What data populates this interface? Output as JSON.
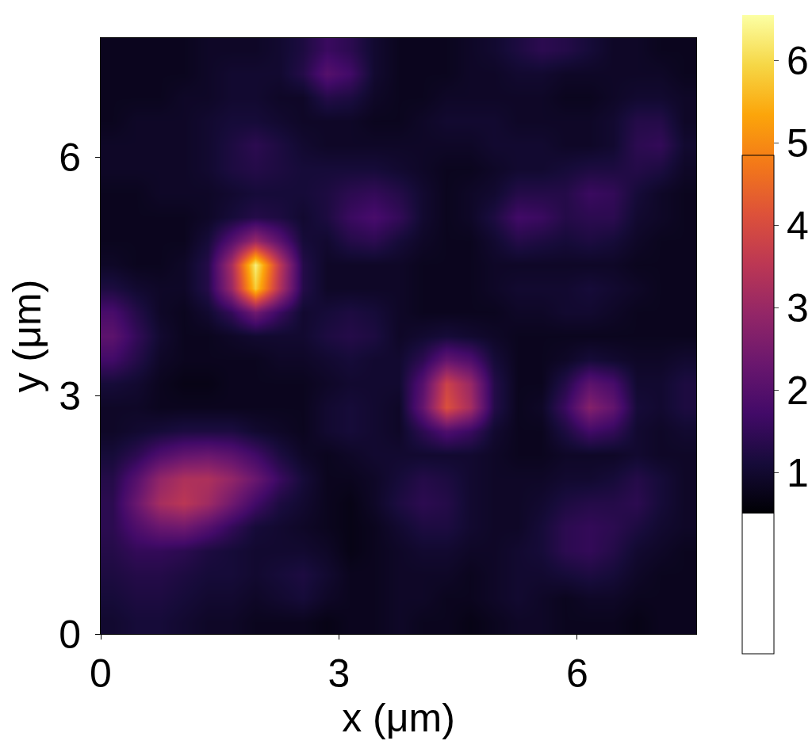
{
  "chart_data": {
    "type": "heatmap",
    "xlabel": "x (μm)",
    "ylabel": "y (μm)",
    "color": "inferno",
    "xlim": [
      0,
      7.5
    ],
    "ylim": [
      0,
      7.5
    ],
    "xticks": [
      0,
      3,
      6
    ],
    "yticks": [
      0,
      3,
      6
    ],
    "colorbar_range": [
      0.5,
      6.55
    ],
    "colorbar_ticks": [
      1,
      2,
      3,
      4,
      5,
      6
    ],
    "x": [
      0.15,
      0.45,
      0.75,
      1.05,
      1.35,
      1.65,
      1.95,
      2.25,
      2.55,
      2.85,
      3.15,
      3.45,
      3.75,
      4.05,
      4.35,
      4.65,
      4.95,
      5.25,
      5.55,
      5.85,
      6.15,
      6.45,
      6.75,
      7.05,
      7.35
    ],
    "y": [
      0.15,
      0.45,
      0.75,
      1.05,
      1.35,
      1.65,
      1.95,
      2.25,
      2.55,
      2.85,
      3.15,
      3.45,
      3.75,
      4.05,
      4.35,
      4.65,
      4.95,
      5.25,
      5.55,
      5.85,
      6.15,
      6.45,
      6.75,
      7.05,
      7.35
    ],
    "z": [
      [
        1.0,
        1.1,
        1.1,
        1.0,
        0.9,
        0.9,
        0.8,
        0.8,
        0.8,
        0.7,
        0.8,
        0.8,
        0.9,
        0.8,
        0.8,
        0.7,
        0.8,
        0.9,
        0.9,
        0.8,
        0.8,
        0.8,
        0.7,
        0.8,
        0.8
      ],
      [
        1.1,
        1.2,
        1.2,
        1.1,
        1.0,
        1.0,
        0.9,
        1.0,
        1.1,
        0.9,
        0.8,
        0.8,
        0.9,
        0.9,
        0.8,
        0.8,
        0.9,
        1.0,
        0.9,
        0.8,
        0.9,
        0.9,
        0.8,
        0.8,
        0.8
      ],
      [
        1.2,
        1.3,
        1.3,
        1.2,
        1.1,
        1.1,
        1.0,
        1.1,
        1.2,
        1.0,
        0.8,
        0.8,
        0.9,
        0.9,
        0.9,
        0.8,
        0.9,
        1.0,
        1.0,
        1.1,
        1.2,
        1.1,
        0.9,
        0.8,
        0.8
      ],
      [
        1.3,
        1.5,
        1.5,
        1.4,
        1.2,
        1.1,
        1.0,
        1.0,
        1.0,
        0.9,
        0.7,
        0.8,
        0.9,
        1.0,
        1.0,
        0.9,
        0.9,
        1.0,
        1.1,
        1.4,
        1.5,
        1.3,
        1.0,
        0.9,
        0.8
      ],
      [
        1.4,
        1.9,
        2.3,
        2.4,
        2.0,
        1.5,
        1.1,
        1.0,
        0.9,
        0.8,
        0.7,
        0.8,
        1.0,
        1.2,
        1.2,
        1.0,
        0.9,
        0.9,
        1.1,
        1.4,
        1.5,
        1.4,
        1.2,
        1.0,
        0.9
      ],
      [
        1.4,
        2.3,
        3.2,
        3.5,
        3.1,
        2.4,
        1.7,
        1.2,
        1.0,
        0.8,
        0.7,
        0.9,
        1.2,
        1.4,
        1.3,
        1.0,
        0.9,
        0.9,
        1.0,
        1.2,
        1.3,
        1.3,
        1.4,
        1.1,
        0.9
      ],
      [
        1.3,
        2.0,
        2.9,
        3.3,
        3.3,
        2.9,
        2.3,
        1.6,
        1.1,
        0.8,
        0.8,
        0.9,
        1.1,
        1.3,
        1.2,
        1.0,
        0.9,
        0.9,
        0.9,
        1.0,
        1.0,
        1.1,
        1.3,
        1.1,
        0.9
      ],
      [
        1.1,
        1.4,
        1.9,
        2.2,
        2.3,
        2.1,
        1.7,
        1.2,
        0.9,
        0.8,
        0.9,
        1.0,
        1.0,
        1.0,
        1.0,
        1.0,
        0.9,
        0.8,
        0.8,
        0.9,
        0.9,
        0.9,
        1.0,
        0.9,
        0.9
      ],
      [
        0.9,
        1.0,
        1.1,
        1.2,
        1.2,
        1.2,
        1.0,
        0.9,
        0.8,
        1.0,
        1.1,
        1.0,
        0.9,
        1.4,
        1.9,
        1.6,
        1.0,
        0.8,
        0.8,
        1.2,
        1.7,
        1.5,
        1.0,
        0.9,
        1.0
      ],
      [
        0.9,
        0.9,
        0.8,
        0.8,
        0.8,
        0.8,
        0.8,
        0.8,
        0.8,
        1.0,
        1.1,
        1.0,
        0.9,
        2.2,
        4.1,
        3.2,
        1.3,
        0.8,
        0.9,
        1.6,
        2.7,
        2.2,
        1.1,
        1.0,
        1.2
      ],
      [
        1.1,
        1.0,
        0.8,
        0.7,
        0.7,
        0.8,
        0.8,
        0.8,
        0.8,
        0.9,
        1.0,
        1.0,
        1.0,
        2.0,
        3.8,
        3.0,
        1.3,
        0.8,
        0.8,
        1.3,
        2.1,
        1.8,
        1.0,
        1.0,
        1.2
      ],
      [
        1.7,
        1.3,
        0.9,
        0.8,
        0.8,
        0.8,
        0.8,
        0.9,
        0.9,
        1.0,
        1.1,
        1.0,
        1.0,
        1.4,
        2.2,
        1.9,
        1.1,
        0.8,
        0.8,
        0.9,
        1.1,
        1.0,
        0.9,
        0.9,
        1.0
      ],
      [
        2.1,
        1.5,
        1.0,
        0.8,
        0.8,
        0.9,
        1.0,
        1.0,
        1.0,
        1.2,
        1.3,
        1.2,
        0.9,
        1.0,
        1.1,
        1.0,
        0.9,
        0.8,
        0.8,
        0.8,
        0.8,
        0.8,
        0.8,
        0.8,
        0.8
      ],
      [
        1.8,
        1.3,
        0.9,
        0.8,
        1.0,
        1.5,
        2.4,
        1.6,
        1.0,
        1.1,
        1.2,
        1.1,
        0.9,
        0.8,
        0.8,
        0.8,
        0.8,
        0.9,
        0.9,
        1.0,
        1.0,
        0.9,
        0.8,
        0.8,
        0.8
      ],
      [
        1.2,
        1.0,
        0.9,
        0.9,
        1.3,
        3.0,
        5.8,
        3.4,
        1.3,
        0.9,
        0.9,
        0.9,
        0.9,
        0.8,
        0.8,
        0.8,
        0.9,
        1.0,
        1.0,
        1.0,
        1.1,
        1.0,
        0.9,
        0.8,
        0.8
      ],
      [
        0.9,
        0.8,
        0.8,
        0.9,
        1.3,
        3.2,
        6.3,
        3.6,
        1.3,
        0.9,
        0.9,
        0.9,
        0.9,
        0.8,
        0.8,
        0.8,
        0.9,
        0.9,
        0.9,
        0.9,
        0.9,
        0.9,
        0.8,
        0.8,
        0.8
      ],
      [
        0.8,
        0.8,
        0.8,
        0.8,
        1.1,
        2.0,
        3.0,
        2.1,
        1.1,
        1.0,
        1.3,
        1.4,
        1.1,
        0.9,
        0.8,
        0.8,
        1.0,
        1.3,
        1.2,
        1.1,
        1.2,
        1.1,
        0.9,
        0.8,
        0.8
      ],
      [
        0.8,
        0.8,
        0.8,
        0.8,
        0.9,
        1.1,
        1.3,
        1.2,
        1.0,
        1.2,
        1.6,
        1.8,
        1.5,
        1.0,
        0.8,
        0.9,
        1.2,
        1.7,
        1.6,
        1.3,
        1.4,
        1.4,
        1.0,
        0.9,
        0.8
      ],
      [
        0.8,
        0.8,
        0.9,
        0.9,
        0.9,
        1.0,
        1.1,
        1.1,
        1.1,
        1.2,
        1.4,
        1.5,
        1.3,
        1.0,
        0.8,
        0.9,
        1.0,
        1.3,
        1.3,
        1.3,
        1.6,
        1.5,
        1.1,
        0.9,
        0.8
      ],
      [
        0.9,
        0.9,
        0.9,
        0.9,
        1.0,
        1.2,
        1.3,
        1.2,
        1.1,
        1.1,
        1.1,
        1.1,
        1.0,
        0.9,
        0.8,
        0.8,
        0.9,
        1.0,
        1.0,
        1.1,
        1.2,
        1.2,
        1.3,
        1.2,
        0.9
      ],
      [
        0.9,
        0.9,
        0.9,
        0.9,
        1.0,
        1.2,
        1.4,
        1.2,
        1.0,
        0.9,
        0.9,
        0.9,
        0.9,
        0.9,
        0.9,
        0.9,
        1.0,
        1.0,
        1.0,
        0.9,
        0.9,
        1.0,
        1.4,
        1.5,
        1.0
      ],
      [
        0.8,
        0.9,
        0.9,
        0.9,
        1.0,
        1.1,
        1.1,
        1.0,
        0.9,
        0.9,
        0.9,
        0.8,
        0.8,
        0.9,
        1.0,
        1.0,
        1.0,
        0.9,
        0.9,
        0.9,
        0.9,
        1.0,
        1.3,
        1.3,
        0.9
      ],
      [
        0.8,
        0.8,
        0.8,
        0.9,
        0.9,
        1.0,
        1.0,
        0.9,
        0.9,
        1.3,
        1.2,
        0.9,
        0.8,
        0.8,
        0.9,
        0.9,
        0.9,
        0.9,
        0.9,
        0.8,
        0.8,
        0.9,
        1.0,
        1.0,
        0.9
      ],
      [
        0.8,
        0.8,
        0.8,
        0.8,
        0.9,
        1.0,
        1.0,
        1.0,
        1.3,
        2.0,
        1.7,
        1.0,
        0.8,
        0.8,
        0.8,
        0.9,
        0.9,
        1.0,
        1.0,
        0.9,
        0.9,
        0.9,
        0.9,
        0.9,
        0.8
      ],
      [
        0.8,
        0.8,
        0.8,
        0.8,
        0.9,
        0.9,
        0.9,
        1.0,
        1.2,
        1.6,
        1.4,
        1.0,
        0.8,
        0.8,
        0.8,
        0.9,
        1.0,
        1.2,
        1.4,
        1.3,
        1.1,
        0.9,
        0.9,
        0.8,
        0.8
      ]
    ]
  }
}
